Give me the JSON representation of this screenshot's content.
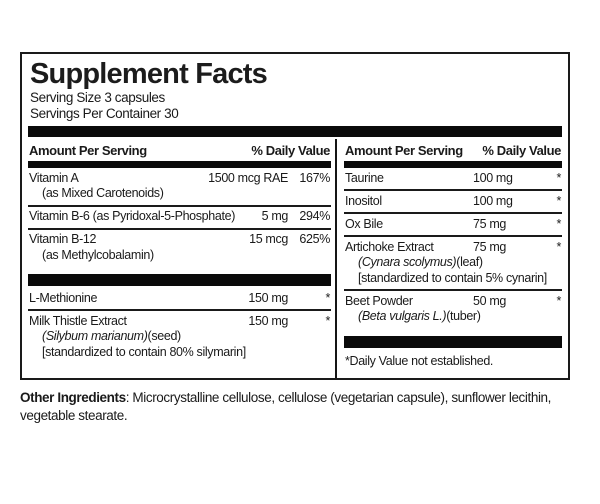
{
  "panel": {
    "title": "Supplement Facts",
    "serving_size": "Serving Size 3 capsules",
    "servings_per_container": "Servings Per Container 30",
    "amount_header": "Amount Per Serving",
    "dv_header": "% Daily Value",
    "footnote": "*Daily Value not established."
  },
  "left_rows": [
    {
      "name": "Vitamin A",
      "sub1": "(as Mixed Carotenoids)",
      "amount": "1500 mcg RAE",
      "dv": "167%"
    },
    {
      "name": "Vitamin B-6 (as Pyridoxal-5-Phosphate)",
      "amount": "5 mg",
      "dv": "294%"
    },
    {
      "name": "Vitamin B-12",
      "sub1": "(as Methylcobalamin)",
      "amount": "15 mcg",
      "dv": "625%"
    },
    {
      "name": "L-Methionine",
      "amount": "150 mg",
      "dv": "*"
    },
    {
      "name": "Milk Thistle Extract",
      "sub1_italic": "(Silybum marianum)",
      "sub1_plain": "(seed)",
      "sub2": "[standardized to contain 80% silymarin]",
      "amount": "150 mg",
      "dv": "*"
    }
  ],
  "right_rows": [
    {
      "name": "Taurine",
      "amount": "100 mg",
      "dv": "*"
    },
    {
      "name": "Inositol",
      "amount": "100 mg",
      "dv": "*"
    },
    {
      "name": "Ox Bile",
      "amount": "75 mg",
      "dv": "*"
    },
    {
      "name": "Artichoke Extract",
      "sub1_italic": "(Cynara scolymus)",
      "sub1_plain": "(leaf)",
      "sub2": "[standardized to contain 5% cynarin]",
      "amount": "75 mg",
      "dv": "*"
    },
    {
      "name": "Beet Powder",
      "sub1_italic": "(Beta vulgaris L.)",
      "sub1_plain": "(tuber)",
      "amount": "50 mg",
      "dv": "*"
    }
  ],
  "other_ingredients": {
    "label": "Other Ingredients",
    "line1_rest": ": Microcrystalline cellulose, cellulose (vegetarian capsule), sunflower lecithin,",
    "line2": "vegetable stearate."
  },
  "colors": {
    "ink": "#1a1a1a",
    "bar": "#0a0a0a",
    "background": "#ffffff"
  }
}
